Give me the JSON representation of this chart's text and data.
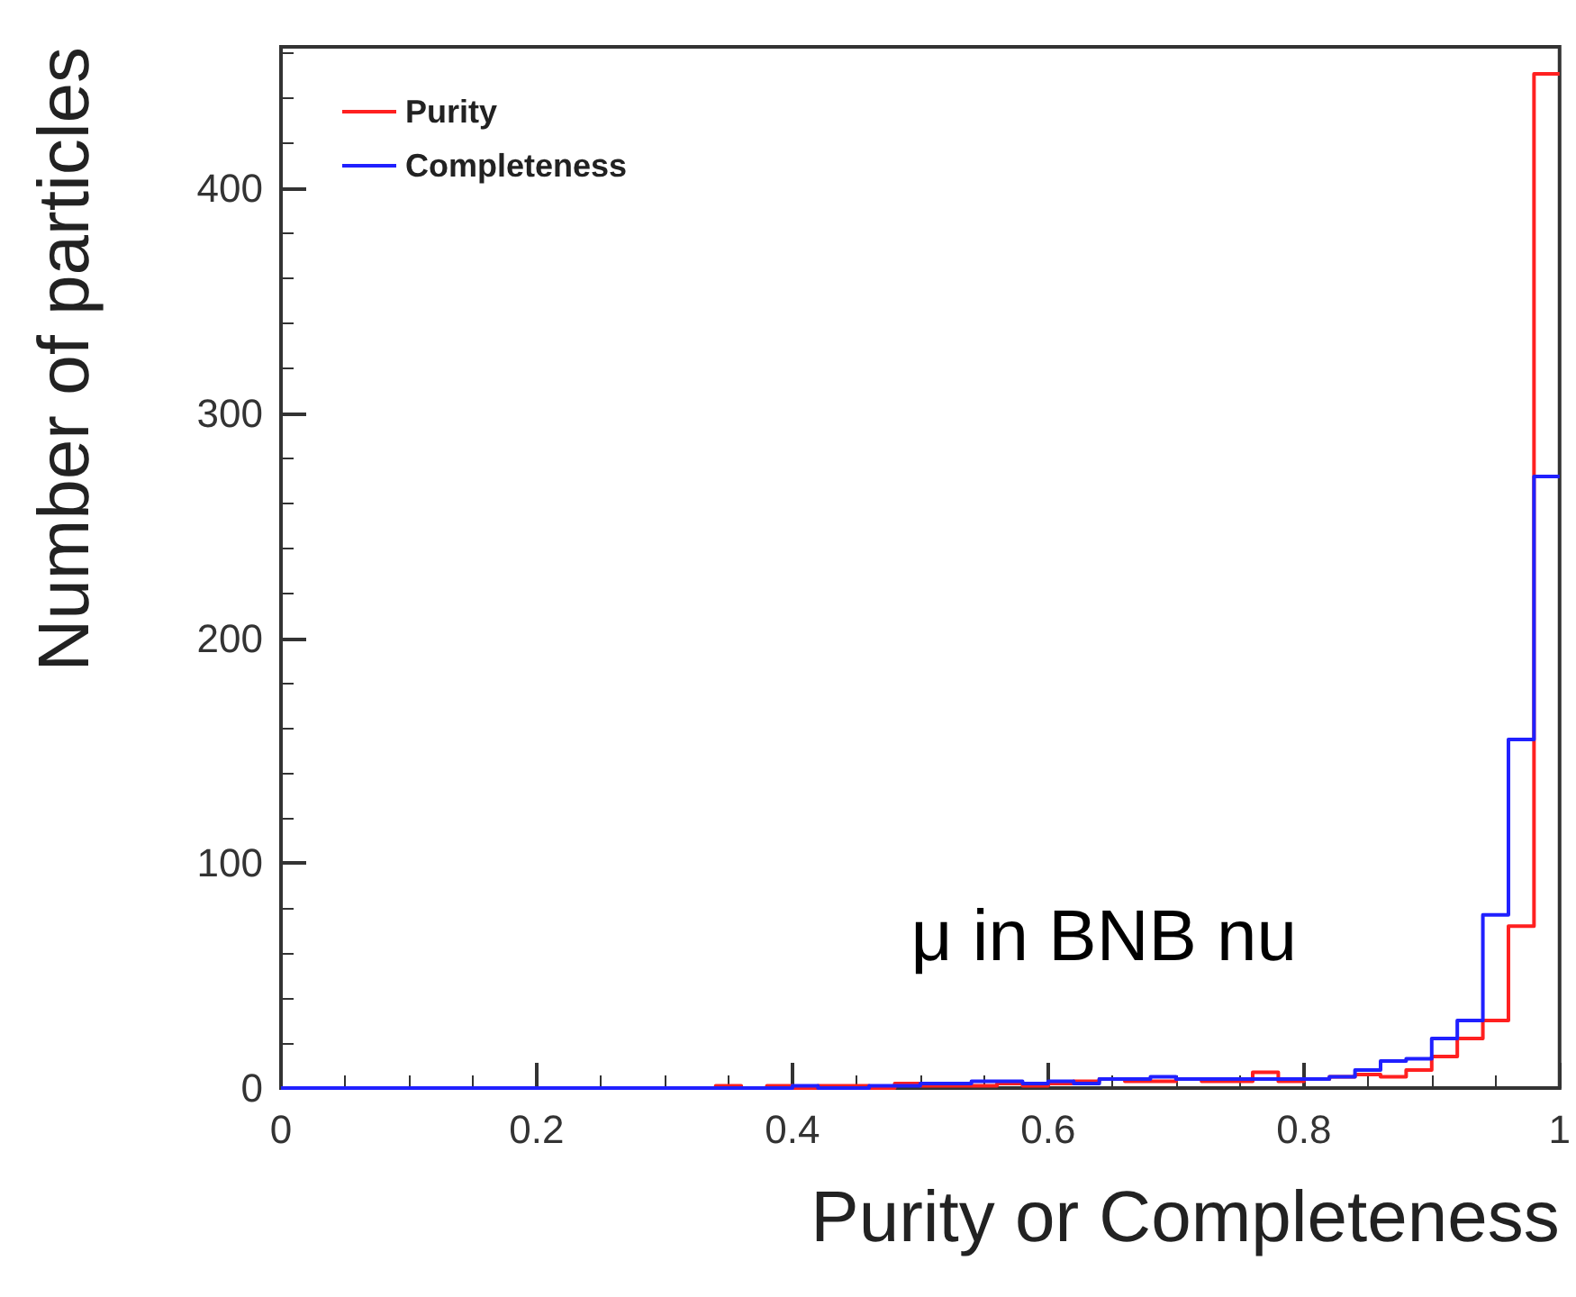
{
  "chart_data": {
    "type": "histogram",
    "xlabel": "Purity or Completeness",
    "ylabel": "Number of particles",
    "bins": [
      0,
      0.02,
      0.04,
      0.06,
      0.08,
      0.1,
      0.12,
      0.14,
      0.16,
      0.18,
      0.2,
      0.22,
      0.24,
      0.26,
      0.28,
      0.3,
      0.32,
      0.34,
      0.36,
      0.38,
      0.4,
      0.42,
      0.44,
      0.46,
      0.48,
      0.5,
      0.52,
      0.54,
      0.56,
      0.58,
      0.6,
      0.62,
      0.64,
      0.66,
      0.68,
      0.7,
      0.72,
      0.74,
      0.76,
      0.78,
      0.8,
      0.82,
      0.84,
      0.86,
      0.88,
      0.9,
      0.92,
      0.94,
      0.96,
      0.98,
      1
    ],
    "series": [
      {
        "name": "Purity",
        "color": "#ff2020",
        "values": [
          0,
          0,
          0,
          0,
          0,
          0,
          0,
          0,
          0,
          0,
          0,
          0,
          0,
          0,
          0,
          0,
          0,
          1,
          0,
          1,
          0,
          1,
          1,
          0,
          2,
          1,
          1,
          1,
          2,
          1,
          2,
          3,
          4,
          3,
          3,
          4,
          3,
          3,
          7,
          3,
          4,
          5,
          6,
          5,
          8,
          14,
          22,
          30,
          72,
          451
        ]
      },
      {
        "name": "Completeness",
        "color": "#2020ff",
        "values": [
          0,
          0,
          0,
          0,
          0,
          0,
          0,
          0,
          0,
          0,
          0,
          0,
          0,
          0,
          0,
          0,
          0,
          0,
          0,
          0,
          1,
          0,
          0,
          1,
          1,
          2,
          2,
          3,
          3,
          2,
          3,
          2,
          4,
          4,
          5,
          4,
          4,
          4,
          4,
          4,
          4,
          5,
          8,
          12,
          13,
          22,
          30,
          77,
          155,
          272
        ]
      }
    ],
    "xlim": [
      0,
      1
    ],
    "xticks": [
      0,
      0.2,
      0.4,
      0.6,
      0.8,
      1
    ],
    "ylim": [
      0,
      463
    ],
    "yticks": [
      0,
      100,
      200,
      300,
      400
    ],
    "annotations": [
      "μ in BNB nu"
    ],
    "legend": "top left",
    "grid": false
  }
}
